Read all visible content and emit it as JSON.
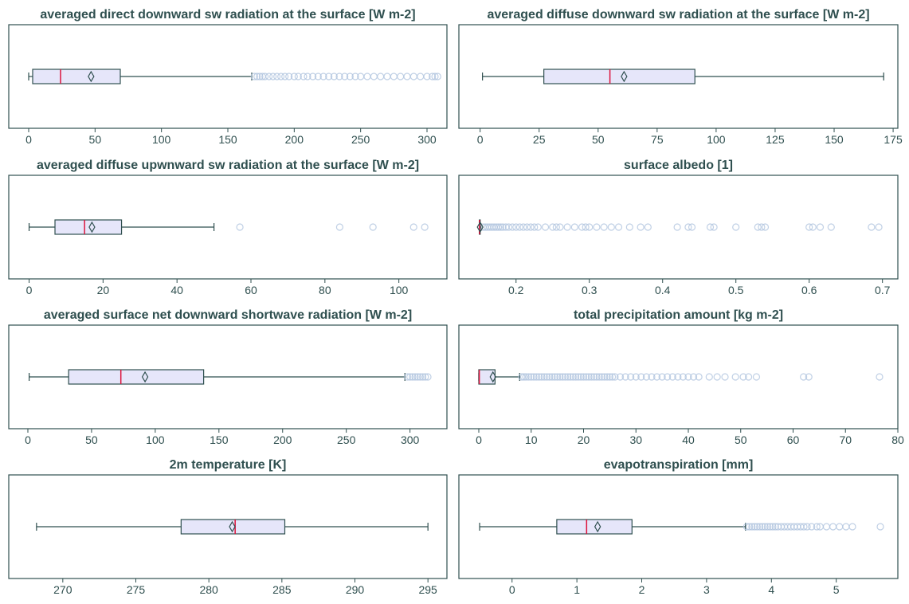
{
  "chart_data": [
    {
      "type": "boxplot",
      "title": "averaged direct downward sw radiation at the surface [W m-2]",
      "xlim": [
        -15,
        315
      ],
      "xticks": [
        0,
        50,
        100,
        150,
        200,
        250,
        300
      ],
      "tick_labels": [
        "0",
        "50",
        "100",
        "150",
        "200",
        "250",
        "300"
      ],
      "stats": {
        "whislo": 0,
        "q1": 3,
        "median": 24,
        "mean": 47,
        "q3": 69,
        "whishi": 168
      },
      "fliers": [
        170,
        172,
        174,
        176,
        178,
        181,
        184,
        187,
        190,
        193,
        196,
        200,
        203,
        207,
        210,
        214,
        218,
        222,
        226,
        230,
        234,
        238,
        242,
        246,
        250,
        255,
        260,
        265,
        270,
        275,
        280,
        285,
        290,
        295,
        300,
        304,
        306,
        308
      ]
    },
    {
      "type": "boxplot",
      "title": "averaged diffuse downward sw radiation at the surface [W m-2]",
      "xlim": [
        -9,
        177
      ],
      "xticks": [
        0,
        25,
        50,
        75,
        100,
        125,
        150,
        175
      ],
      "tick_labels": [
        "0",
        "25",
        "50",
        "75",
        "100",
        "125",
        "150",
        "175"
      ],
      "stats": {
        "whislo": 1,
        "q1": 27,
        "median": 55,
        "mean": 61,
        "q3": 91,
        "whishi": 171
      },
      "fliers": []
    },
    {
      "type": "boxplot",
      "title": "averaged diffuse upwnward sw radiation at the surface [W m-2]",
      "xlim": [
        -5.5,
        113
      ],
      "xticks": [
        0,
        20,
        40,
        60,
        80,
        100
      ],
      "tick_labels": [
        "0",
        "20",
        "40",
        "60",
        "80",
        "100"
      ],
      "stats": {
        "whislo": 0,
        "q1": 7,
        "median": 15,
        "mean": 17,
        "q3": 25,
        "whishi": 50
      },
      "fliers": [
        57,
        84,
        93,
        104,
        107
      ]
    },
    {
      "type": "boxplot",
      "title": "surface albedo [1]",
      "xlim": [
        0.122,
        0.721
      ],
      "xticks": [
        0.2,
        0.3,
        0.4,
        0.5,
        0.6,
        0.7
      ],
      "tick_labels": [
        "0.2",
        "0.3",
        "0.4",
        "0.5",
        "0.6",
        "0.7"
      ],
      "stats": {
        "whislo": 0.15,
        "q1": 0.15,
        "median": 0.15,
        "mean": 0.151,
        "q3": 0.151,
        "whishi": 0.152
      },
      "fliers": [
        0.155,
        0.158,
        0.161,
        0.164,
        0.167,
        0.17,
        0.173,
        0.176,
        0.179,
        0.182,
        0.186,
        0.19,
        0.195,
        0.2,
        0.205,
        0.21,
        0.215,
        0.22,
        0.225,
        0.23,
        0.24,
        0.25,
        0.255,
        0.26,
        0.27,
        0.28,
        0.29,
        0.295,
        0.3,
        0.31,
        0.32,
        0.33,
        0.34,
        0.355,
        0.37,
        0.38,
        0.42,
        0.435,
        0.44,
        0.465,
        0.47,
        0.5,
        0.53,
        0.535,
        0.54,
        0.6,
        0.605,
        0.615,
        0.63,
        0.685,
        0.695
      ]
    },
    {
      "type": "boxplot",
      "title": "averaged surface net downward shortwave radiation [W m-2]",
      "xlim": [
        -15,
        329
      ],
      "xticks": [
        0,
        50,
        100,
        150,
        200,
        250,
        300
      ],
      "tick_labels": [
        "0",
        "50",
        "100",
        "150",
        "200",
        "250",
        "300"
      ],
      "stats": {
        "whislo": 1,
        "q1": 32,
        "median": 73,
        "mean": 92,
        "q3": 138,
        "whishi": 296
      },
      "fliers": [
        298,
        300,
        302,
        304,
        306,
        308,
        310,
        312,
        314
      ]
    },
    {
      "type": "boxplot",
      "title": "total precipitation amount [kg m-2]",
      "xlim": [
        -3.8,
        80
      ],
      "xticks": [
        0,
        10,
        20,
        30,
        40,
        50,
        60,
        70,
        80
      ],
      "tick_labels": [
        "0",
        "10",
        "20",
        "30",
        "40",
        "50",
        "60",
        "70",
        "80"
      ],
      "stats": {
        "whislo": 0,
        "q1": 0,
        "median": 0.1,
        "mean": 2.7,
        "q3": 3.1,
        "whishi": 7.8
      },
      "fliers": [
        8.2,
        8.6,
        9,
        9.5,
        10,
        10.5,
        11,
        11.5,
        12,
        12.5,
        13,
        13.5,
        14,
        14.5,
        15,
        15.5,
        16,
        16.5,
        17,
        17.5,
        18,
        18.5,
        19,
        19.5,
        20,
        20.5,
        21,
        21.5,
        22,
        22.5,
        23,
        23.5,
        24,
        24.5,
        25,
        25.5,
        26,
        27,
        28,
        29,
        30,
        31,
        32,
        33,
        34,
        35,
        36,
        37,
        38,
        39,
        40,
        41,
        42,
        44,
        45.5,
        47,
        49,
        50.5,
        51.5,
        53,
        62,
        63,
        76.5
      ]
    },
    {
      "type": "boxplot",
      "title": "2m temperature [K]",
      "xlim": [
        266.3,
        296.3
      ],
      "xticks": [
        270,
        275,
        280,
        285,
        290,
        295
      ],
      "tick_labels": [
        "270",
        "275",
        "280",
        "285",
        "290",
        "295"
      ],
      "stats": {
        "whislo": 268.2,
        "q1": 278.1,
        "median": 281.8,
        "mean": 281.6,
        "q3": 285.2,
        "whishi": 295
      },
      "fliers": []
    },
    {
      "type": "boxplot",
      "title": "evapotranspiration [mm]",
      "xlim": [
        -0.82,
        5.95
      ],
      "xticks": [
        0,
        1,
        2,
        3,
        4,
        5
      ],
      "tick_labels": [
        "0",
        "1",
        "2",
        "3",
        "4",
        "5"
      ],
      "stats": {
        "whislo": -0.5,
        "q1": 0.69,
        "median": 1.15,
        "mean": 1.32,
        "q3": 1.85,
        "whishi": 3.6
      },
      "fliers": [
        3.62,
        3.66,
        3.7,
        3.74,
        3.78,
        3.82,
        3.86,
        3.9,
        3.94,
        3.98,
        4.02,
        4.06,
        4.1,
        4.15,
        4.2,
        4.25,
        4.3,
        4.35,
        4.4,
        4.45,
        4.5,
        4.55,
        4.62,
        4.7,
        4.75,
        4.85,
        4.95,
        5.05,
        5.15,
        5.25,
        5.68
      ]
    }
  ]
}
